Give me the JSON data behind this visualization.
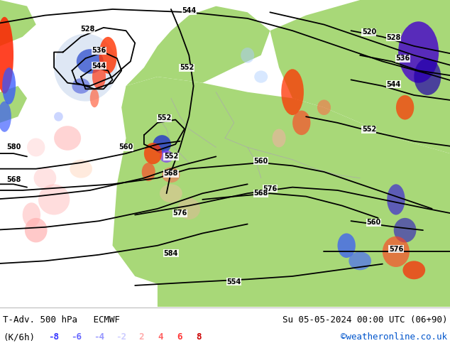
{
  "title_left": "T-Adv. 500 hPa   ECMWF",
  "title_right": "Su 05-05-2024 00:00 UTC (06+90)",
  "unit_label": "(K/6h)",
  "legend_values": [
    "-8",
    "-6",
    "-4",
    "-2",
    "2",
    "4",
    "6",
    "8"
  ],
  "legend_colors": [
    "#3333ff",
    "#6666ff",
    "#9999ff",
    "#ccccff",
    "#ffaaaa",
    "#ff6666",
    "#ff3333",
    "#cc0000"
  ],
  "credit": "©weatheronline.co.uk",
  "ocean_color": "#e8e8e8",
  "land_color": "#a8d878",
  "title_fontsize": 9,
  "legend_fontsize": 9,
  "credit_fontsize": 9,
  "fig_width": 6.34,
  "fig_height": 4.9,
  "dpi": 100,
  "bottom_bar_height": 0.118
}
